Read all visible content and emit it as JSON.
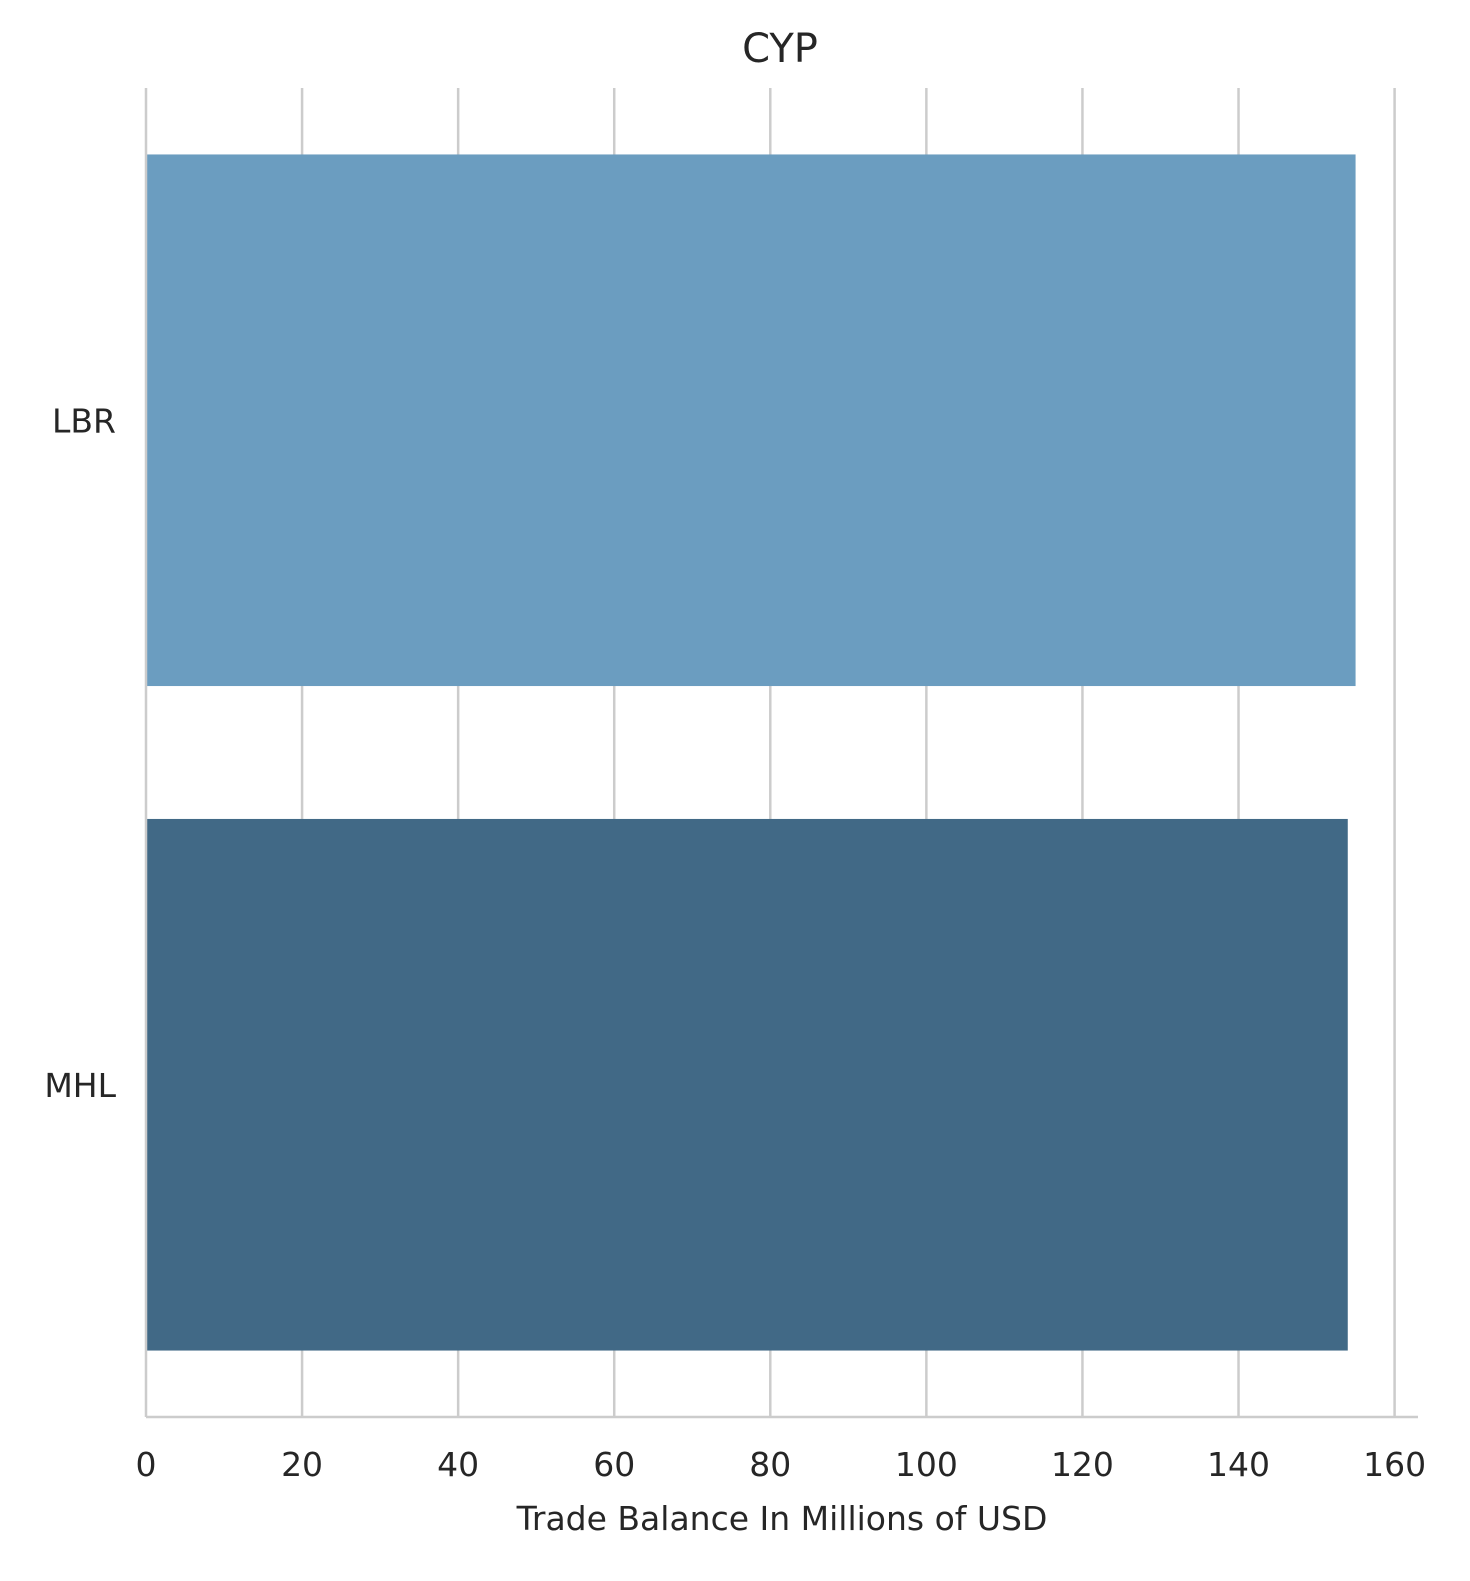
{
  "chart_data": {
    "type": "bar",
    "orientation": "horizontal",
    "title": "CYP",
    "xlabel": "Trade Balance In Millions of USD",
    "ylabel": "",
    "categories": [
      "LBR",
      "MHL"
    ],
    "values": [
      155,
      154
    ],
    "colors": [
      "#6b9dc0",
      "#416986"
    ],
    "xlim": [
      0,
      163
    ],
    "xticks": [
      0,
      20,
      40,
      60,
      80,
      100,
      120,
      140,
      160
    ],
    "grid": "x"
  }
}
